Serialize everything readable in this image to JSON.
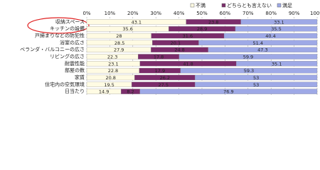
{
  "chart_data": {
    "type": "stacked-bar",
    "orientation": "horizontal",
    "categories": [
      "収納スペース",
      "キッチンの設備",
      "戸締まりなどの防犯性",
      "浴室の広さ",
      "ベランダ・バルコニーの広さ",
      "リビングの広さ",
      "耐震性能",
      "部屋の数",
      "家賃",
      "住宅内の空気環境",
      "日当たり"
    ],
    "series": [
      {
        "name": "不満",
        "color": "#fffbe3",
        "values": [
          43.1,
          35.6,
          28.0,
          28.5,
          27.9,
          22.3,
          23.1,
          22.8,
          20.8,
          19.5,
          14.9
        ]
      },
      {
        "name": "どちらとも言えない",
        "color": "#7b2d6b",
        "values": [
          23.8,
          28.9,
          31.6,
          20.1,
          24.8,
          17.8,
          41.8,
          17.9,
          26.2,
          27.5,
          8.2
        ]
      },
      {
        "name": "満足",
        "color": "#9ea9e6",
        "values": [
          33.1,
          35.5,
          40.4,
          51.4,
          47.3,
          59.9,
          35.1,
          59.3,
          53.0,
          53.0,
          76.9
        ]
      }
    ],
    "xlim": [
      0,
      100
    ],
    "xticks": [
      {
        "value": 0,
        "label": "0%"
      },
      {
        "value": 10,
        "label": "10%"
      },
      {
        "value": 20,
        "label": "20%"
      },
      {
        "value": 30,
        "label": "30%"
      },
      {
        "value": 40,
        "label": "40%"
      },
      {
        "value": 50,
        "label": "50%"
      },
      {
        "value": 60,
        "label": "60%"
      },
      {
        "value": 70,
        "label": "70%"
      },
      {
        "value": 80,
        "label": "80%"
      },
      {
        "value": 90,
        "label": "90%"
      },
      {
        "value": 100,
        "label": "100%"
      }
    ],
    "grid": true
  }
}
